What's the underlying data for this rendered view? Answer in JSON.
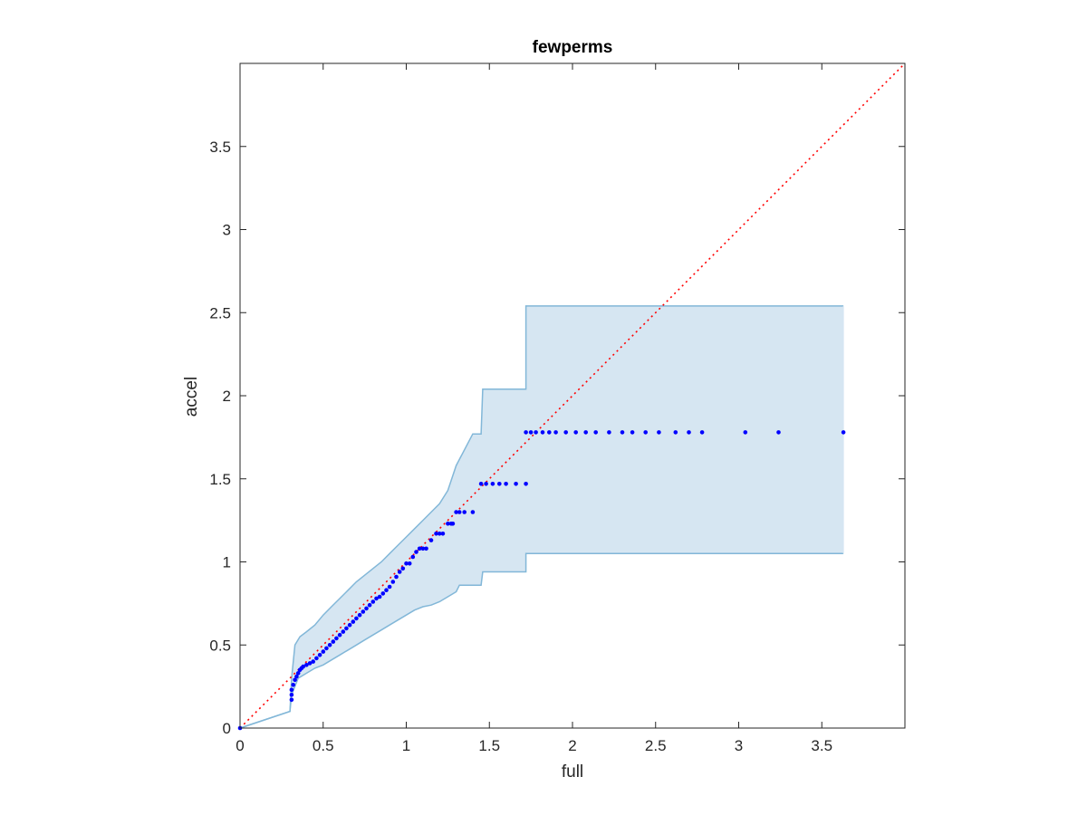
{
  "chart_data": {
    "type": "scatter",
    "title": "fewperms",
    "xlabel": "full",
    "ylabel": "accel",
    "xlim": [
      0,
      4
    ],
    "ylim": [
      0,
      4
    ],
    "xticks": [
      0,
      0.5,
      1,
      1.5,
      2,
      2.5,
      3,
      3.5
    ],
    "xtick_labels": [
      "0",
      "0.5",
      "1",
      "1.5",
      "2",
      "2.5",
      "3",
      "3.5"
    ],
    "yticks": [
      0,
      0.5,
      1,
      1.5,
      2,
      2.5,
      3,
      3.5
    ],
    "ytick_labels": [
      "0",
      "0.5",
      "1",
      "1.5",
      "2",
      "2.5",
      "3",
      "3.5"
    ],
    "grid": false,
    "colors": {
      "points": "#0000ff",
      "band_fill": "#d6e6f2",
      "band_edge": "#82b7d8",
      "reference": "#ff0000",
      "axes": "#262626"
    },
    "reference_line": {
      "style": "dotted",
      "from": [
        0,
        0
      ],
      "to": [
        4,
        4
      ]
    },
    "band": {
      "upper": [
        [
          0,
          0
        ],
        [
          0.3,
          0.1
        ],
        [
          0.31,
          0.3
        ],
        [
          0.33,
          0.5
        ],
        [
          0.36,
          0.55
        ],
        [
          0.4,
          0.58
        ],
        [
          0.45,
          0.62
        ],
        [
          0.5,
          0.68
        ],
        [
          0.55,
          0.73
        ],
        [
          0.6,
          0.78
        ],
        [
          0.65,
          0.83
        ],
        [
          0.7,
          0.88
        ],
        [
          0.75,
          0.92
        ],
        [
          0.8,
          0.96
        ],
        [
          0.85,
          1.0
        ],
        [
          0.9,
          1.05
        ],
        [
          0.95,
          1.1
        ],
        [
          1.0,
          1.15
        ],
        [
          1.05,
          1.2
        ],
        [
          1.1,
          1.25
        ],
        [
          1.15,
          1.3
        ],
        [
          1.2,
          1.35
        ],
        [
          1.25,
          1.43
        ],
        [
          1.3,
          1.58
        ],
        [
          1.4,
          1.77
        ],
        [
          1.45,
          1.77
        ],
        [
          1.46,
          2.04
        ],
        [
          1.72,
          2.04
        ],
        [
          1.72,
          2.54
        ],
        [
          3.63,
          2.54
        ]
      ],
      "lower": [
        [
          0,
          0
        ],
        [
          0.3,
          0.1
        ],
        [
          0.31,
          0.2
        ],
        [
          0.35,
          0.3
        ],
        [
          0.4,
          0.33
        ],
        [
          0.45,
          0.36
        ],
        [
          0.5,
          0.38
        ],
        [
          0.55,
          0.41
        ],
        [
          0.6,
          0.44
        ],
        [
          0.65,
          0.47
        ],
        [
          0.7,
          0.5
        ],
        [
          0.75,
          0.53
        ],
        [
          0.8,
          0.56
        ],
        [
          0.85,
          0.59
        ],
        [
          0.9,
          0.62
        ],
        [
          0.95,
          0.65
        ],
        [
          1.0,
          0.68
        ],
        [
          1.05,
          0.71
        ],
        [
          1.1,
          0.73
        ],
        [
          1.15,
          0.74
        ],
        [
          1.2,
          0.76
        ],
        [
          1.25,
          0.79
        ],
        [
          1.3,
          0.82
        ],
        [
          1.32,
          0.86
        ],
        [
          1.45,
          0.86
        ],
        [
          1.46,
          0.94
        ],
        [
          1.72,
          0.94
        ],
        [
          1.72,
          1.05
        ],
        [
          3.63,
          1.05
        ]
      ]
    },
    "series": [
      {
        "name": "",
        "points": [
          [
            0,
            0
          ],
          [
            0.31,
            0.17
          ],
          [
            0.31,
            0.2
          ],
          [
            0.31,
            0.23
          ],
          [
            0.32,
            0.26
          ],
          [
            0.33,
            0.29
          ],
          [
            0.34,
            0.31
          ],
          [
            0.35,
            0.33
          ],
          [
            0.36,
            0.35
          ],
          [
            0.37,
            0.36
          ],
          [
            0.38,
            0.37
          ],
          [
            0.4,
            0.38
          ],
          [
            0.42,
            0.39
          ],
          [
            0.44,
            0.4
          ],
          [
            0.46,
            0.42
          ],
          [
            0.48,
            0.44
          ],
          [
            0.5,
            0.46
          ],
          [
            0.52,
            0.48
          ],
          [
            0.54,
            0.5
          ],
          [
            0.56,
            0.52
          ],
          [
            0.58,
            0.54
          ],
          [
            0.6,
            0.56
          ],
          [
            0.62,
            0.58
          ],
          [
            0.64,
            0.6
          ],
          [
            0.66,
            0.62
          ],
          [
            0.68,
            0.64
          ],
          [
            0.7,
            0.66
          ],
          [
            0.72,
            0.68
          ],
          [
            0.74,
            0.7
          ],
          [
            0.76,
            0.72
          ],
          [
            0.78,
            0.74
          ],
          [
            0.8,
            0.76
          ],
          [
            0.82,
            0.78
          ],
          [
            0.84,
            0.79
          ],
          [
            0.86,
            0.81
          ],
          [
            0.88,
            0.83
          ],
          [
            0.9,
            0.85
          ],
          [
            0.92,
            0.88
          ],
          [
            0.94,
            0.91
          ],
          [
            0.96,
            0.94
          ],
          [
            0.98,
            0.96
          ],
          [
            1.0,
            0.99
          ],
          [
            1.02,
            0.99
          ],
          [
            1.04,
            1.03
          ],
          [
            1.06,
            1.06
          ],
          [
            1.08,
            1.08
          ],
          [
            1.1,
            1.08
          ],
          [
            1.12,
            1.08
          ],
          [
            1.15,
            1.13
          ],
          [
            1.18,
            1.17
          ],
          [
            1.2,
            1.17
          ],
          [
            1.22,
            1.17
          ],
          [
            1.25,
            1.23
          ],
          [
            1.27,
            1.23
          ],
          [
            1.28,
            1.23
          ],
          [
            1.3,
            1.3
          ],
          [
            1.32,
            1.3
          ],
          [
            1.35,
            1.3
          ],
          [
            1.4,
            1.3
          ],
          [
            1.45,
            1.47
          ],
          [
            1.48,
            1.47
          ],
          [
            1.52,
            1.47
          ],
          [
            1.56,
            1.47
          ],
          [
            1.6,
            1.47
          ],
          [
            1.66,
            1.47
          ],
          [
            1.72,
            1.47
          ],
          [
            1.72,
            1.78
          ],
          [
            1.75,
            1.78
          ],
          [
            1.78,
            1.78
          ],
          [
            1.82,
            1.78
          ],
          [
            1.86,
            1.78
          ],
          [
            1.9,
            1.78
          ],
          [
            1.96,
            1.78
          ],
          [
            2.02,
            1.78
          ],
          [
            2.08,
            1.78
          ],
          [
            2.14,
            1.78
          ],
          [
            2.22,
            1.78
          ],
          [
            2.3,
            1.78
          ],
          [
            2.36,
            1.78
          ],
          [
            2.44,
            1.78
          ],
          [
            2.52,
            1.78
          ],
          [
            2.62,
            1.78
          ],
          [
            2.7,
            1.78
          ],
          [
            2.78,
            1.78
          ],
          [
            3.04,
            1.78
          ],
          [
            3.24,
            1.78
          ],
          [
            3.63,
            1.78
          ]
        ]
      }
    ]
  }
}
